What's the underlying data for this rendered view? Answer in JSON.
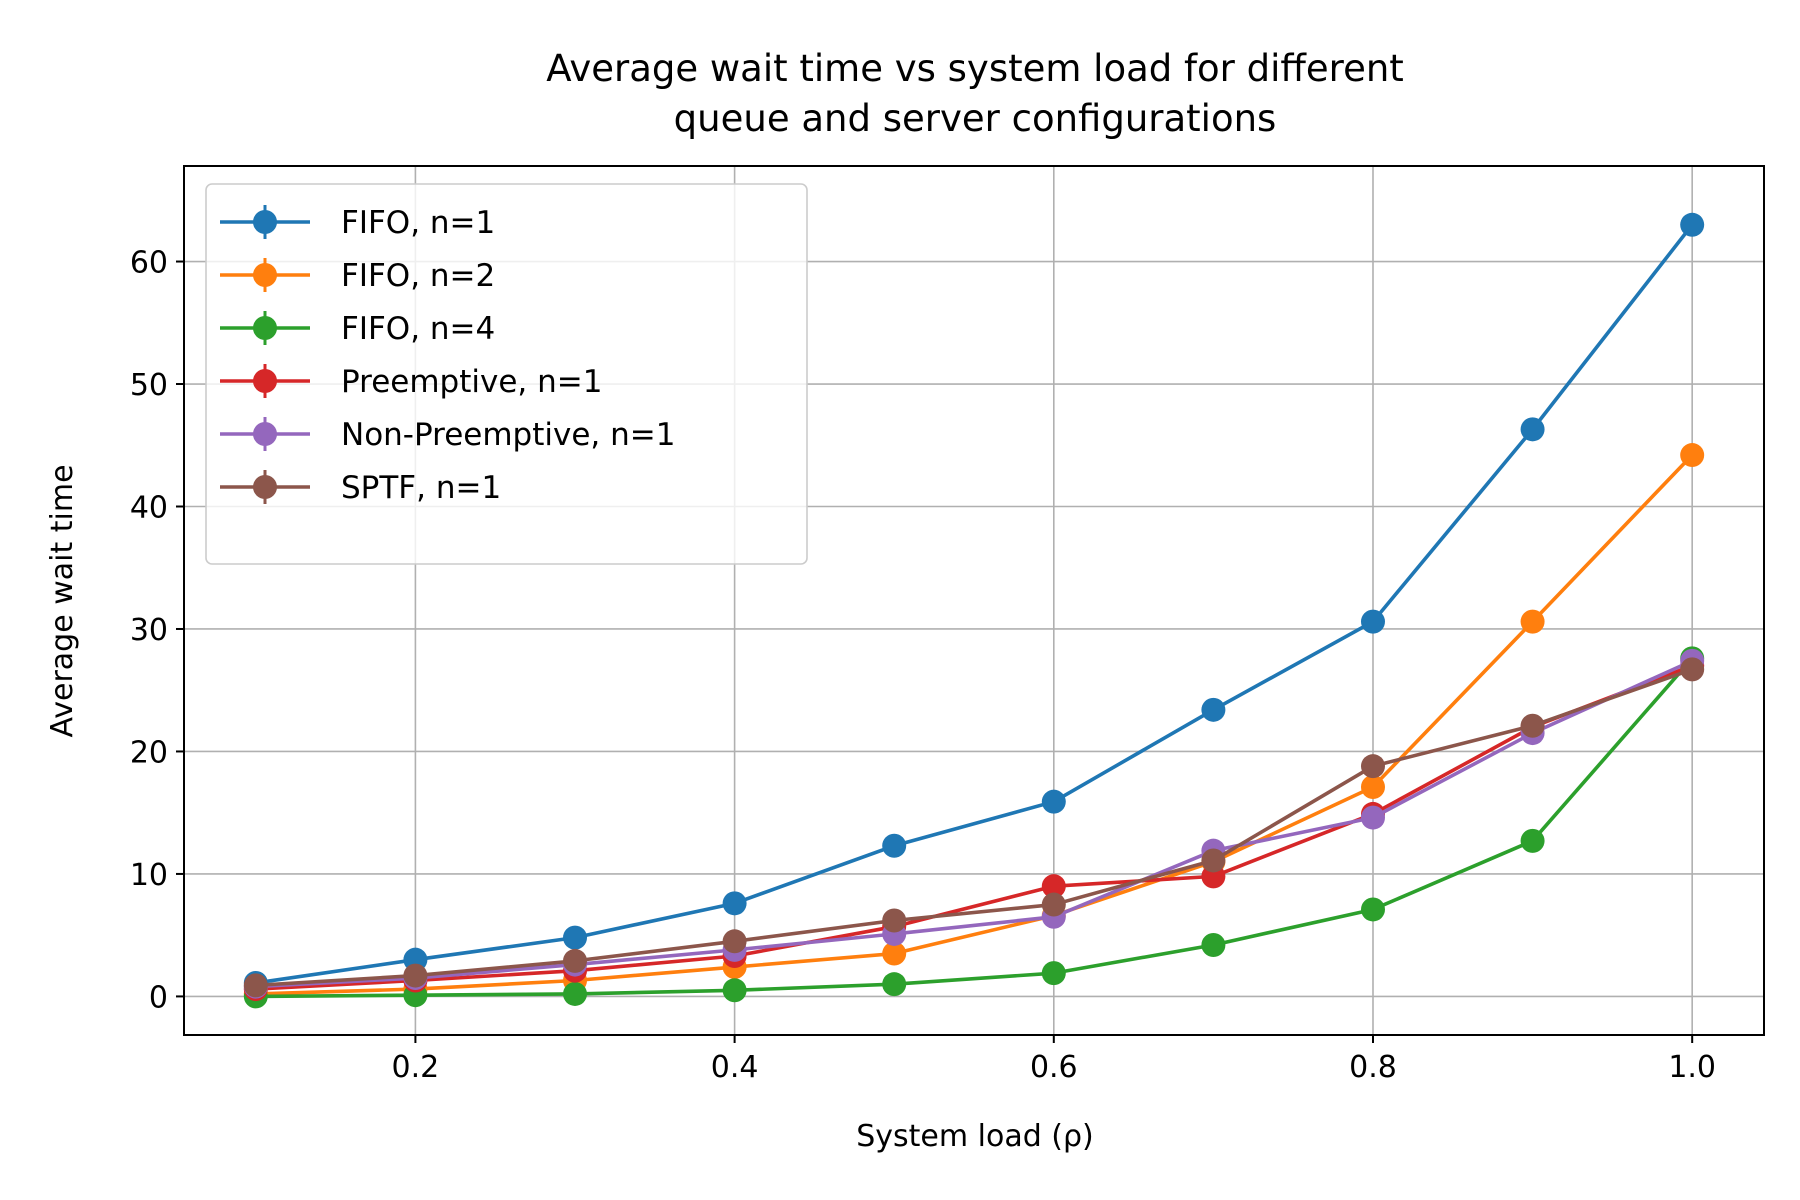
{
  "chart_data": {
    "type": "line",
    "title_lines": [
      "Average wait time vs system load for different",
      "queue and server configurations"
    ],
    "xlabel": "System load (ρ)",
    "ylabel": "Average wait time",
    "xlim": [
      0.055,
      1.045
    ],
    "ylim": [
      -3.15,
      67.8
    ],
    "x_ticks": [
      0.2,
      0.4,
      0.6,
      0.8,
      1.0
    ],
    "x_tick_labels": [
      "0.2",
      "0.4",
      "0.6",
      "0.8",
      "1.0"
    ],
    "y_ticks": [
      0,
      10,
      20,
      30,
      40,
      50,
      60
    ],
    "y_tick_labels": [
      "0",
      "10",
      "20",
      "30",
      "40",
      "50",
      "60"
    ],
    "grid": true,
    "legend_position": "upper-left",
    "x": [
      0.1,
      0.2,
      0.3,
      0.4,
      0.5,
      0.6,
      0.7,
      0.8,
      0.9,
      1.0
    ],
    "series": [
      {
        "name": "FIFO, n=1",
        "color": "#1f77b4",
        "values": [
          1.1,
          3.0,
          4.8,
          7.6,
          12.3,
          15.9,
          23.4,
          30.6,
          46.3,
          63.0
        ]
      },
      {
        "name": "FIFO, n=2",
        "color": "#ff7f0e",
        "values": [
          0.2,
          0.6,
          1.3,
          2.4,
          3.5,
          6.6,
          11.0,
          17.1,
          30.6,
          44.2
        ]
      },
      {
        "name": "FIFO, n=4",
        "color": "#2ca02c",
        "values": [
          0.0,
          0.1,
          0.2,
          0.5,
          1.0,
          1.9,
          4.2,
          7.1,
          12.7,
          27.6
        ]
      },
      {
        "name": "Preemptive, n=1",
        "color": "#d62728",
        "values": [
          0.6,
          1.3,
          2.1,
          3.3,
          5.7,
          9.0,
          9.8,
          14.9,
          22.0,
          27.0
        ]
      },
      {
        "name": "Non-Preemptive, n=1",
        "color": "#9467bd",
        "values": [
          0.8,
          1.5,
          2.6,
          3.8,
          5.1,
          6.5,
          11.9,
          14.6,
          21.5,
          27.4
        ]
      },
      {
        "name": "SPTF, n=1",
        "color": "#8c564b",
        "values": [
          0.9,
          1.7,
          2.9,
          4.5,
          6.2,
          7.5,
          11.1,
          18.8,
          22.1,
          26.7
        ]
      }
    ]
  }
}
